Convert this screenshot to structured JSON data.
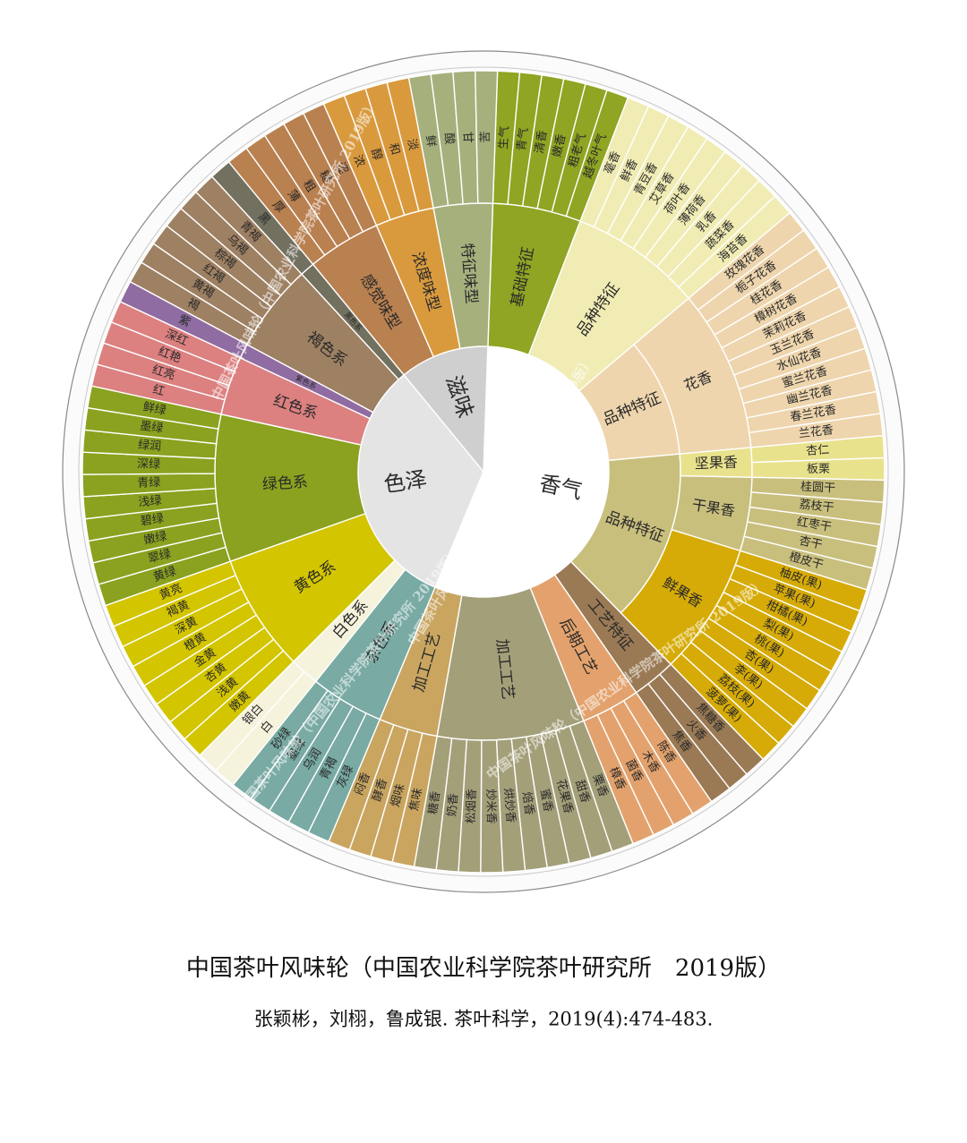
{
  "title": "中国茶叶风味轮（中国农业科学院茶叶研究所　2019版）",
  "citation": "张颖彬，刘栩，鲁成银. 茶叶科学，2019(4):474-483.",
  "watermark": "中国茶叶风味轮（中国农业科学院茶叶研究所 2019版）",
  "wheel": [
    {
      "label": "香气",
      "color": "#ffffff",
      "children": [
        {
          "label": "基础特征",
          "color": "#8fa523",
          "leaves": [
            "生气",
            "青气",
            "清香",
            "嫩香",
            "粗老气",
            "越冬叶气"
          ]
        },
        {
          "label": "品种特征",
          "color": "#f0ecb4",
          "leaves": [
            "毫香",
            "鲜香",
            "青豆香",
            "艾草香",
            "荷叶香",
            "薄荷香",
            "乳香",
            "蔬菜香",
            "海苔香"
          ]
        },
        {
          "label": "品种特征",
          "color": "#eed5ad",
          "children": [
            {
              "label": "花香",
              "color": "#eed5ad",
              "leaves": [
                "玫瑰花香",
                "栀子花香",
                "桂花香",
                "樟树花香",
                "茉莉花香",
                "玉兰花香",
                "水仙花香",
                "蜜兰花香",
                "幽兰花香",
                "春兰花香",
                "兰花香"
              ]
            }
          ]
        },
        {
          "label": "品种特征",
          "color": "#c9bf7d",
          "children": [
            {
              "label": "坚果香",
              "color": "#e9e28d",
              "leaves": [
                "杏仁",
                "板栗"
              ]
            },
            {
              "label": "干果香",
              "color": "#c9bf7d",
              "leaves": [
                "桂圆干",
                "荔枝干",
                "红枣干",
                "杏干",
                "橙皮干"
              ]
            },
            {
              "label": "鲜果香",
              "color": "#d6ab07",
              "leaves": [
                "柚皮(果)",
                "苹果(果)",
                "柑橘(果)",
                "梨(果)",
                "桃(果)",
                "杏(果)",
                "李(果)",
                "荔枝(果)",
                "菠萝(果)"
              ]
            }
          ]
        },
        {
          "label": "工艺特征",
          "color": "#9a7a55",
          "leaves": [
            "焦糖香",
            "火香",
            "焦香"
          ]
        },
        {
          "label": "后期工艺",
          "color": "#e3a26d",
          "leaves": [
            "陈香",
            "木香",
            "菌香",
            "樟香"
          ]
        },
        {
          "label": "加工工艺",
          "color": "#a39f79",
          "leaves": [
            "栗香",
            "甜香",
            "花果香",
            "蜜香",
            "焙香",
            "烘炒香",
            "炒米香",
            "松烟香",
            "奶香",
            "糖香"
          ]
        },
        {
          "label": "加工工艺",
          "color": "#c9a560",
          "leaves": [
            "焦味",
            "烟味",
            "酵香",
            "闷香"
          ]
        }
      ]
    },
    {
      "label": "色泽",
      "color": "#e4e4e4",
      "children": [
        {
          "label": "杂色系",
          "color": "#79aaa3",
          "leaves": [
            "灰绿",
            "青褐",
            "乌润",
            "墨绿",
            "砂绿"
          ]
        },
        {
          "label": "白色系",
          "color": "#f5f3dc",
          "leaves": [
            "白",
            "银白"
          ]
        },
        {
          "label": "黄色系",
          "color": "#d3c500",
          "leaves": [
            "嫩黄",
            "浅黄",
            "杏黄",
            "金黄",
            "橙黄",
            "深黄",
            "褐黄",
            "黄亮"
          ]
        },
        {
          "label": "绿色系",
          "color": "#8aa21f",
          "leaves": [
            "黄绿",
            "翠绿",
            "嫩绿",
            "碧绿",
            "浅绿",
            "青绿",
            "深绿",
            "绿润",
            "墨绿",
            "鲜绿"
          ]
        },
        {
          "label": "红色系",
          "color": "#dc8080",
          "leaves": [
            "红",
            "红亮",
            "红艳",
            "深红"
          ]
        },
        {
          "label": "紫色系",
          "color": "#8f6ca1",
          "leaves": [
            "紫"
          ]
        },
        {
          "label": "褐色系",
          "color": "#9e8063",
          "leaves": [
            "褐",
            "黄褐",
            "红褐",
            "棕褐",
            "乌褐",
            "青褐"
          ]
        },
        {
          "label": "黑色系",
          "color": "#72705f",
          "leaves": [
            "黑"
          ]
        }
      ]
    },
    {
      "label": "滋味",
      "color": "#cfcfcf",
      "children": [
        {
          "label": "感觉味型",
          "color": "#b98050",
          "leaves": [
            "厚",
            "薄",
            "粗",
            "糙",
            "涩"
          ]
        },
        {
          "label": "浓度味型",
          "color": "#d99a3e",
          "leaves": [
            "浓",
            "醇",
            "和",
            "淡"
          ]
        },
        {
          "label": "特征味型",
          "color": "#a5b07c",
          "leaves": [
            "鲜",
            "酸",
            "甘",
            "苦"
          ]
        }
      ]
    }
  ]
}
